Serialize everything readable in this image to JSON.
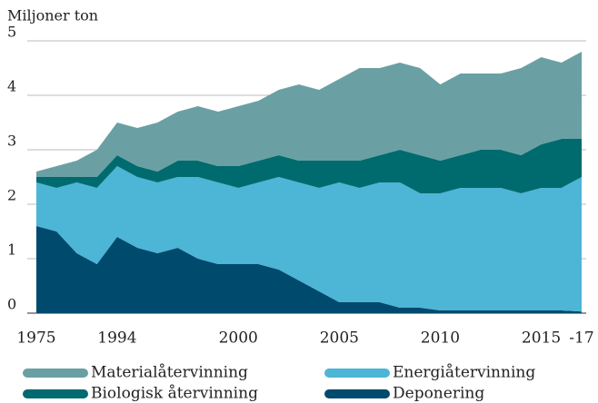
{
  "chart_data": {
    "type": "stacked_area",
    "ylabel": "Miljoner ton",
    "categories": [
      "1975",
      null,
      null,
      null,
      "1994",
      null,
      null,
      null,
      null,
      null,
      "2000",
      null,
      null,
      null,
      null,
      "2005",
      null,
      null,
      null,
      null,
      "2010",
      null,
      null,
      null,
      null,
      "2015",
      null,
      "-17"
    ],
    "series": [
      {
        "name": "Materialåtervinning",
        "color": "#6aa0a3",
        "values": [
          0.1,
          0.2,
          0.3,
          0.5,
          0.6,
          0.7,
          0.9,
          0.9,
          1.0,
          1.0,
          1.1,
          1.1,
          1.2,
          1.4,
          1.3,
          1.5,
          1.7,
          1.6,
          1.6,
          1.6,
          1.4,
          1.5,
          1.4,
          1.4,
          1.6,
          1.6,
          1.4,
          1.6
        ]
      },
      {
        "name": "Biologisk återvinning",
        "color": "#006b6f",
        "values": [
          0.1,
          0.2,
          0.1,
          0.2,
          0.2,
          0.2,
          0.2,
          0.3,
          0.3,
          0.3,
          0.4,
          0.4,
          0.4,
          0.4,
          0.5,
          0.4,
          0.5,
          0.5,
          0.6,
          0.7,
          0.6,
          0.6,
          0.7,
          0.7,
          0.7,
          0.8,
          0.9,
          0.7
        ]
      },
      {
        "name": "Energiåtervinning",
        "color": "#4db5d6",
        "values": [
          0.8,
          0.8,
          1.3,
          1.4,
          1.3,
          1.3,
          1.3,
          1.3,
          1.5,
          1.5,
          1.4,
          1.5,
          1.7,
          1.8,
          1.9,
          2.2,
          2.1,
          2.2,
          2.3,
          2.1,
          2.15,
          2.25,
          2.25,
          2.25,
          2.15,
          2.25,
          2.25,
          2.47
        ]
      },
      {
        "name": "Deponering",
        "color": "#004a6e",
        "values": [
          1.6,
          1.5,
          1.1,
          0.9,
          1.4,
          1.2,
          1.1,
          1.2,
          1.0,
          0.9,
          0.9,
          0.9,
          0.8,
          0.6,
          0.4,
          0.2,
          0.2,
          0.2,
          0.1,
          0.1,
          0.05,
          0.05,
          0.05,
          0.05,
          0.05,
          0.05,
          0.05,
          0.03
        ]
      }
    ],
    "ylim": [
      0,
      5
    ],
    "yticks": [
      0,
      1,
      2,
      3,
      4,
      5
    ],
    "grid": true
  }
}
